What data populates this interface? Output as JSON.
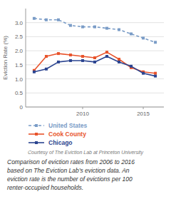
{
  "chart_data": {
    "type": "line",
    "x": [
      2006,
      2007,
      2008,
      2009,
      2010,
      2011,
      2012,
      2013,
      2014,
      2015,
      2016
    ],
    "series": [
      {
        "name": "United States",
        "color": "#7a9cc7",
        "marker": "square",
        "line_style": "dashed",
        "values": [
          3.15,
          3.1,
          3.1,
          2.9,
          2.85,
          2.85,
          2.8,
          2.75,
          2.6,
          2.45,
          2.3
        ]
      },
      {
        "name": "Cook County",
        "color": "#e8532b",
        "marker": "square",
        "line_style": "solid",
        "values": [
          1.3,
          1.8,
          1.9,
          1.85,
          1.8,
          1.75,
          1.95,
          1.7,
          1.4,
          1.25,
          1.2
        ]
      },
      {
        "name": "Chicago",
        "color": "#2b4490",
        "marker": "square",
        "line_style": "solid",
        "values": [
          1.25,
          1.35,
          1.6,
          1.65,
          1.65,
          1.6,
          1.8,
          1.6,
          1.45,
          1.2,
          1.1
        ]
      }
    ],
    "y_label": "Eviction Rate (%)",
    "xlim": [
      2005.3,
      2016.7
    ],
    "xticks": [
      2010,
      2015
    ],
    "ylim": [
      0,
      3.5
    ],
    "yticks": [
      0,
      0.5,
      {
        "value": 1.0,
        "label": "1.0"
      },
      1.5,
      {
        "value": 2.0,
        "label": "2.0"
      },
      2.5,
      {
        "value": 3.0,
        "label": "3.0"
      }
    ],
    "grid": true,
    "legend": "bottom",
    "annotations": [
      "Courtesy of The Eviction Lab at Princeton University",
      "Comparison of eviction rates from 2006 to 2016\nbased on The Eviction Lab’s eviction data. An\neviction rate is the number of evictions per 100\nrenter-occupied households."
    ]
  }
}
